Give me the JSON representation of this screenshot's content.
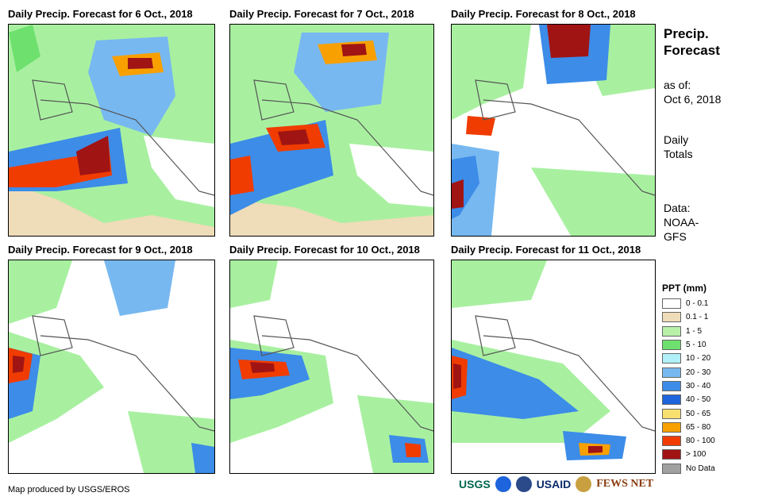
{
  "panels": [
    {
      "title": "Daily Precip. Forecast for 6 Oct., 2018"
    },
    {
      "title": "Daily Precip. Forecast for 7 Oct., 2018"
    },
    {
      "title": "Daily Precip. Forecast for 8 Oct., 2018"
    },
    {
      "title": "Daily Precip. Forecast for 9 Oct., 2018"
    },
    {
      "title": "Daily Precip. Forecast for 10 Oct., 2018"
    },
    {
      "title": "Daily Precip. Forecast for 11 Oct., 2018"
    }
  ],
  "side": {
    "title_line1": "Precip.",
    "title_line2": "Forecast",
    "asof_label": "as of:",
    "asof_date": "Oct 6, 2018",
    "totals_line1": "Daily",
    "totals_line2": "Totals",
    "data_line1": "Data:",
    "data_line2": "NOAA-",
    "data_line3": "GFS"
  },
  "legend": {
    "title": "PPT (mm)",
    "items": [
      {
        "label": "0 - 0.1",
        "color": "#ffffff"
      },
      {
        "label": "0.1 - 1",
        "color": "#efdcb8"
      },
      {
        "label": "1 - 5",
        "color": "#b8f0a8"
      },
      {
        "label": "5 - 10",
        "color": "#6ee06e"
      },
      {
        "label": "10 - 20",
        "color": "#b0f0f8"
      },
      {
        "label": "20 - 30",
        "color": "#78b8f0"
      },
      {
        "label": "30 - 40",
        "color": "#3c8ce8"
      },
      {
        "label": "40 - 50",
        "color": "#1e64dc"
      },
      {
        "label": "50 - 65",
        "color": "#f8e070"
      },
      {
        "label": "65 - 80",
        "color": "#f8a000"
      },
      {
        "label": "80 - 100",
        "color": "#f03c00"
      },
      {
        "label": "> 100",
        "color": "#a01414"
      },
      {
        "label": "No Data",
        "color": "#a0a0a0"
      }
    ]
  },
  "footer": {
    "credit": "Map produced by USGS/EROS",
    "logo_usgs": "USGS",
    "logo_usaid": "USAID",
    "logo_fews": "FEWS NET"
  }
}
